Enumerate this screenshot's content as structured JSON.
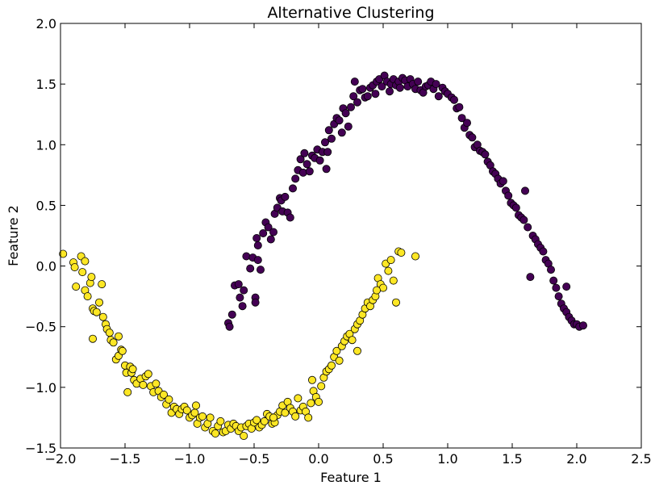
{
  "chart_data": {
    "type": "scatter",
    "title": "Alternative Clustering",
    "xlabel": "Feature 1",
    "ylabel": "Feature 2",
    "xlim": [
      -2.0,
      2.5
    ],
    "ylim": [
      -1.5,
      2.0
    ],
    "x_ticks": [
      "−2.0",
      "−1.5",
      "−1.0",
      "−0.5",
      "0.0",
      "0.5",
      "1.0",
      "1.5",
      "2.0",
      "2.5"
    ],
    "y_ticks": [
      "−1.5",
      "−1.0",
      "−0.5",
      "0.0",
      "0.5",
      "1.0",
      "1.5",
      "2.0"
    ],
    "grid": false,
    "legend": "none",
    "series": [
      {
        "color": "#440154",
        "points": [
          [
            -0.7,
            -0.47
          ],
          [
            -0.69,
            -0.5
          ],
          [
            -0.67,
            -0.4
          ],
          [
            -0.65,
            -0.16
          ],
          [
            -0.62,
            -0.15
          ],
          [
            -0.61,
            -0.26
          ],
          [
            -0.59,
            -0.33
          ],
          [
            -0.58,
            -0.2
          ],
          [
            -0.56,
            0.08
          ],
          [
            -0.53,
            -0.02
          ],
          [
            -0.51,
            0.07
          ],
          [
            -0.49,
            -0.26
          ],
          [
            -0.49,
            -0.3
          ],
          [
            -0.48,
            0.23
          ],
          [
            -0.47,
            0.17
          ],
          [
            -0.47,
            0.05
          ],
          [
            -0.45,
            -0.03
          ],
          [
            -0.43,
            0.27
          ],
          [
            -0.41,
            0.36
          ],
          [
            -0.39,
            0.32
          ],
          [
            -0.37,
            0.22
          ],
          [
            -0.35,
            0.28
          ],
          [
            -0.34,
            0.43
          ],
          [
            -0.32,
            0.48
          ],
          [
            -0.3,
            0.56
          ],
          [
            -0.29,
            0.54
          ],
          [
            -0.28,
            0.45
          ],
          [
            -0.26,
            0.57
          ],
          [
            -0.24,
            0.44
          ],
          [
            -0.22,
            0.4
          ],
          [
            -0.2,
            0.64
          ],
          [
            -0.18,
            0.72
          ],
          [
            -0.16,
            0.79
          ],
          [
            -0.14,
            0.88
          ],
          [
            -0.12,
            0.77
          ],
          [
            -0.11,
            0.93
          ],
          [
            -0.09,
            0.84
          ],
          [
            -0.07,
            0.78
          ],
          [
            -0.05,
            0.91
          ],
          [
            -0.03,
            0.89
          ],
          [
            -0.01,
            0.96
          ],
          [
            0.01,
            0.87
          ],
          [
            0.03,
            0.94
          ],
          [
            0.05,
            1.02
          ],
          [
            0.06,
            0.8
          ],
          [
            0.07,
            0.94
          ],
          [
            0.08,
            1.12
          ],
          [
            0.1,
            1.05
          ],
          [
            0.12,
            1.17
          ],
          [
            0.14,
            1.22
          ],
          [
            0.16,
            1.2
          ],
          [
            0.18,
            1.1
          ],
          [
            0.19,
            1.3
          ],
          [
            0.21,
            1.26
          ],
          [
            0.23,
            1.15
          ],
          [
            0.25,
            1.31
          ],
          [
            0.27,
            1.4
          ],
          [
            0.28,
            1.52
          ],
          [
            0.3,
            1.35
          ],
          [
            0.32,
            1.45
          ],
          [
            0.34,
            1.46
          ],
          [
            0.36,
            1.39
          ],
          [
            0.38,
            1.4
          ],
          [
            0.4,
            1.47
          ],
          [
            0.42,
            1.49
          ],
          [
            0.44,
            1.42
          ],
          [
            0.45,
            1.52
          ],
          [
            0.47,
            1.54
          ],
          [
            0.49,
            1.48
          ],
          [
            0.51,
            1.57
          ],
          [
            0.53,
            1.52
          ],
          [
            0.55,
            1.44
          ],
          [
            0.56,
            1.5
          ],
          [
            0.58,
            1.54
          ],
          [
            0.6,
            1.49
          ],
          [
            0.62,
            1.52
          ],
          [
            0.63,
            1.47
          ],
          [
            0.65,
            1.55
          ],
          [
            0.67,
            1.53
          ],
          [
            0.69,
            1.48
          ],
          [
            0.71,
            1.54
          ],
          [
            0.73,
            1.5
          ],
          [
            0.75,
            1.46
          ],
          [
            0.77,
            1.52
          ],
          [
            0.79,
            1.45
          ],
          [
            0.81,
            1.43
          ],
          [
            0.83,
            1.48
          ],
          [
            0.85,
            1.49
          ],
          [
            0.87,
            1.52
          ],
          [
            0.89,
            1.46
          ],
          [
            0.91,
            1.5
          ],
          [
            0.93,
            1.4
          ],
          [
            0.96,
            1.47
          ],
          [
            0.98,
            1.44
          ],
          [
            1.0,
            1.42
          ],
          [
            1.03,
            1.39
          ],
          [
            1.05,
            1.37
          ],
          [
            1.07,
            1.3
          ],
          [
            1.09,
            1.31
          ],
          [
            1.11,
            1.22
          ],
          [
            1.13,
            1.14
          ],
          [
            1.15,
            1.18
          ],
          [
            1.17,
            1.08
          ],
          [
            1.19,
            1.06
          ],
          [
            1.21,
            0.98
          ],
          [
            1.23,
            1.0
          ],
          [
            1.25,
            0.95
          ],
          [
            1.27,
            0.94
          ],
          [
            1.29,
            0.92
          ],
          [
            1.31,
            0.86
          ],
          [
            1.33,
            0.83
          ],
          [
            1.35,
            0.78
          ],
          [
            1.37,
            0.76
          ],
          [
            1.39,
            0.72
          ],
          [
            1.41,
            0.68
          ],
          [
            1.43,
            0.7
          ],
          [
            1.45,
            0.62
          ],
          [
            1.47,
            0.58
          ],
          [
            1.49,
            0.52
          ],
          [
            1.51,
            0.5
          ],
          [
            1.53,
            0.48
          ],
          [
            1.55,
            0.42
          ],
          [
            1.57,
            0.4
          ],
          [
            1.59,
            0.38
          ],
          [
            1.6,
            0.62
          ],
          [
            1.62,
            0.32
          ],
          [
            1.64,
            -0.09
          ],
          [
            1.66,
            0.25
          ],
          [
            1.68,
            0.22
          ],
          [
            1.7,
            0.18
          ],
          [
            1.72,
            0.15
          ],
          [
            1.74,
            0.12
          ],
          [
            1.76,
            0.05
          ],
          [
            1.78,
            0.02
          ],
          [
            1.8,
            -0.03
          ],
          [
            1.82,
            -0.12
          ],
          [
            1.84,
            -0.18
          ],
          [
            1.86,
            -0.25
          ],
          [
            1.88,
            -0.31
          ],
          [
            1.9,
            -0.35
          ],
          [
            1.92,
            -0.38
          ],
          [
            1.94,
            -0.42
          ],
          [
            1.96,
            -0.45
          ],
          [
            1.98,
            -0.48
          ],
          [
            2.0,
            -0.48
          ],
          [
            2.02,
            -0.5
          ],
          [
            2.05,
            -0.49
          ],
          [
            1.92,
            -0.17
          ]
        ]
      },
      {
        "color": "#fde725",
        "points": [
          [
            -1.98,
            0.1
          ],
          [
            -1.9,
            0.03
          ],
          [
            -1.89,
            -0.01
          ],
          [
            -1.88,
            -0.17
          ],
          [
            -1.84,
            0.08
          ],
          [
            -1.83,
            -0.05
          ],
          [
            -1.81,
            0.04
          ],
          [
            -1.81,
            -0.2
          ],
          [
            -1.79,
            -0.25
          ],
          [
            -1.77,
            -0.14
          ],
          [
            -1.76,
            -0.09
          ],
          [
            -1.75,
            -0.35
          ],
          [
            -1.74,
            -0.37
          ],
          [
            -1.72,
            -0.38
          ],
          [
            -1.7,
            -0.3
          ],
          [
            -1.68,
            -0.15
          ],
          [
            -1.67,
            -0.42
          ],
          [
            -1.65,
            -0.48
          ],
          [
            -1.64,
            -0.52
          ],
          [
            -1.62,
            -0.55
          ],
          [
            -1.61,
            -0.61
          ],
          [
            -1.59,
            -0.63
          ],
          [
            -1.57,
            -0.77
          ],
          [
            -1.55,
            -0.74
          ],
          [
            -1.53,
            -0.69
          ],
          [
            -1.52,
            -0.7
          ],
          [
            -1.5,
            -0.82
          ],
          [
            -1.49,
            -0.88
          ],
          [
            -1.48,
            -1.04
          ],
          [
            -1.46,
            -0.83
          ],
          [
            -1.45,
            -0.88
          ],
          [
            -1.43,
            -0.94
          ],
          [
            -1.41,
            -0.97
          ],
          [
            -1.38,
            -0.93
          ],
          [
            -1.36,
            -0.98
          ],
          [
            -1.34,
            -0.91
          ],
          [
            -1.32,
            -0.89
          ],
          [
            -1.3,
            -0.99
          ],
          [
            -1.28,
            -1.04
          ],
          [
            -1.26,
            -0.97
          ],
          [
            -1.24,
            -1.03
          ],
          [
            -1.22,
            -1.08
          ],
          [
            -1.2,
            -1.06
          ],
          [
            -1.18,
            -1.14
          ],
          [
            -1.16,
            -1.1
          ],
          [
            -1.14,
            -1.21
          ],
          [
            -1.12,
            -1.16
          ],
          [
            -1.1,
            -1.18
          ],
          [
            -1.08,
            -1.22
          ],
          [
            -1.06,
            -1.18
          ],
          [
            -1.04,
            -1.16
          ],
          [
            -1.02,
            -1.19
          ],
          [
            -1.0,
            -1.25
          ],
          [
            -0.98,
            -1.23
          ],
          [
            -0.96,
            -1.21
          ],
          [
            -0.94,
            -1.3
          ],
          [
            -0.92,
            -1.25
          ],
          [
            -0.9,
            -1.24
          ],
          [
            -0.88,
            -1.33
          ],
          [
            -0.86,
            -1.3
          ],
          [
            -0.84,
            -1.25
          ],
          [
            -0.82,
            -1.36
          ],
          [
            -0.8,
            -1.38
          ],
          [
            -0.78,
            -1.32
          ],
          [
            -0.76,
            -1.28
          ],
          [
            -0.74,
            -1.37
          ],
          [
            -0.72,
            -1.36
          ],
          [
            -0.7,
            -1.31
          ],
          [
            -0.68,
            -1.34
          ],
          [
            -0.66,
            -1.3
          ],
          [
            -0.64,
            -1.32
          ],
          [
            -0.62,
            -1.36
          ],
          [
            -0.6,
            -1.33
          ],
          [
            -0.58,
            -1.4
          ],
          [
            -0.56,
            -1.32
          ],
          [
            -0.54,
            -1.3
          ],
          [
            -0.52,
            -1.34
          ],
          [
            -0.5,
            -1.29
          ],
          [
            -0.48,
            -1.27
          ],
          [
            -0.46,
            -1.33
          ],
          [
            -0.44,
            -1.31
          ],
          [
            -0.42,
            -1.28
          ],
          [
            -0.4,
            -1.22
          ],
          [
            -0.38,
            -1.24
          ],
          [
            -0.36,
            -1.3
          ],
          [
            -0.34,
            -1.29
          ],
          [
            -0.32,
            -1.23
          ],
          [
            -0.3,
            -1.2
          ],
          [
            -0.28,
            -1.15
          ],
          [
            -0.26,
            -1.21
          ],
          [
            -0.24,
            -1.12
          ],
          [
            -0.22,
            -1.17
          ],
          [
            -0.2,
            -1.2
          ],
          [
            -0.18,
            -1.24
          ],
          [
            -0.16,
            -1.09
          ],
          [
            -0.14,
            -1.19
          ],
          [
            -0.12,
            -1.16
          ],
          [
            -0.1,
            -1.2
          ],
          [
            -0.08,
            -1.25
          ],
          [
            -0.06,
            -1.13
          ],
          [
            -0.04,
            -1.03
          ],
          [
            -0.02,
            -1.08
          ],
          [
            0.0,
            -1.12
          ],
          [
            0.02,
            -0.99
          ],
          [
            0.04,
            -0.92
          ],
          [
            0.06,
            -0.87
          ],
          [
            0.08,
            -0.85
          ],
          [
            0.1,
            -0.82
          ],
          [
            0.12,
            -0.75
          ],
          [
            0.14,
            -0.7
          ],
          [
            0.16,
            -0.78
          ],
          [
            0.18,
            -0.66
          ],
          [
            0.2,
            -0.62
          ],
          [
            0.22,
            -0.58
          ],
          [
            0.24,
            -0.56
          ],
          [
            0.26,
            -0.61
          ],
          [
            0.28,
            -0.52
          ],
          [
            0.3,
            -0.48
          ],
          [
            0.32,
            -0.45
          ],
          [
            0.34,
            -0.4
          ],
          [
            0.36,
            -0.35
          ],
          [
            0.38,
            -0.3
          ],
          [
            0.4,
            -0.33
          ],
          [
            0.42,
            -0.28
          ],
          [
            0.44,
            -0.25
          ],
          [
            0.46,
            -0.1
          ],
          [
            0.48,
            -0.15
          ],
          [
            0.5,
            -0.18
          ],
          [
            0.52,
            0.02
          ],
          [
            0.54,
            -0.04
          ],
          [
            0.56,
            0.05
          ],
          [
            0.58,
            -0.12
          ],
          [
            0.6,
            -0.3
          ],
          [
            0.62,
            0.12
          ],
          [
            0.64,
            0.11
          ],
          [
            0.75,
            0.08
          ],
          [
            -1.75,
            -0.6
          ],
          [
            -1.55,
            -0.58
          ],
          [
            -1.44,
            -0.85
          ],
          [
            -0.95,
            -1.15
          ],
          [
            -0.35,
            -1.25
          ],
          [
            0.3,
            -0.7
          ],
          [
            0.45,
            -0.2
          ],
          [
            -0.05,
            -0.94
          ]
        ]
      }
    ]
  }
}
